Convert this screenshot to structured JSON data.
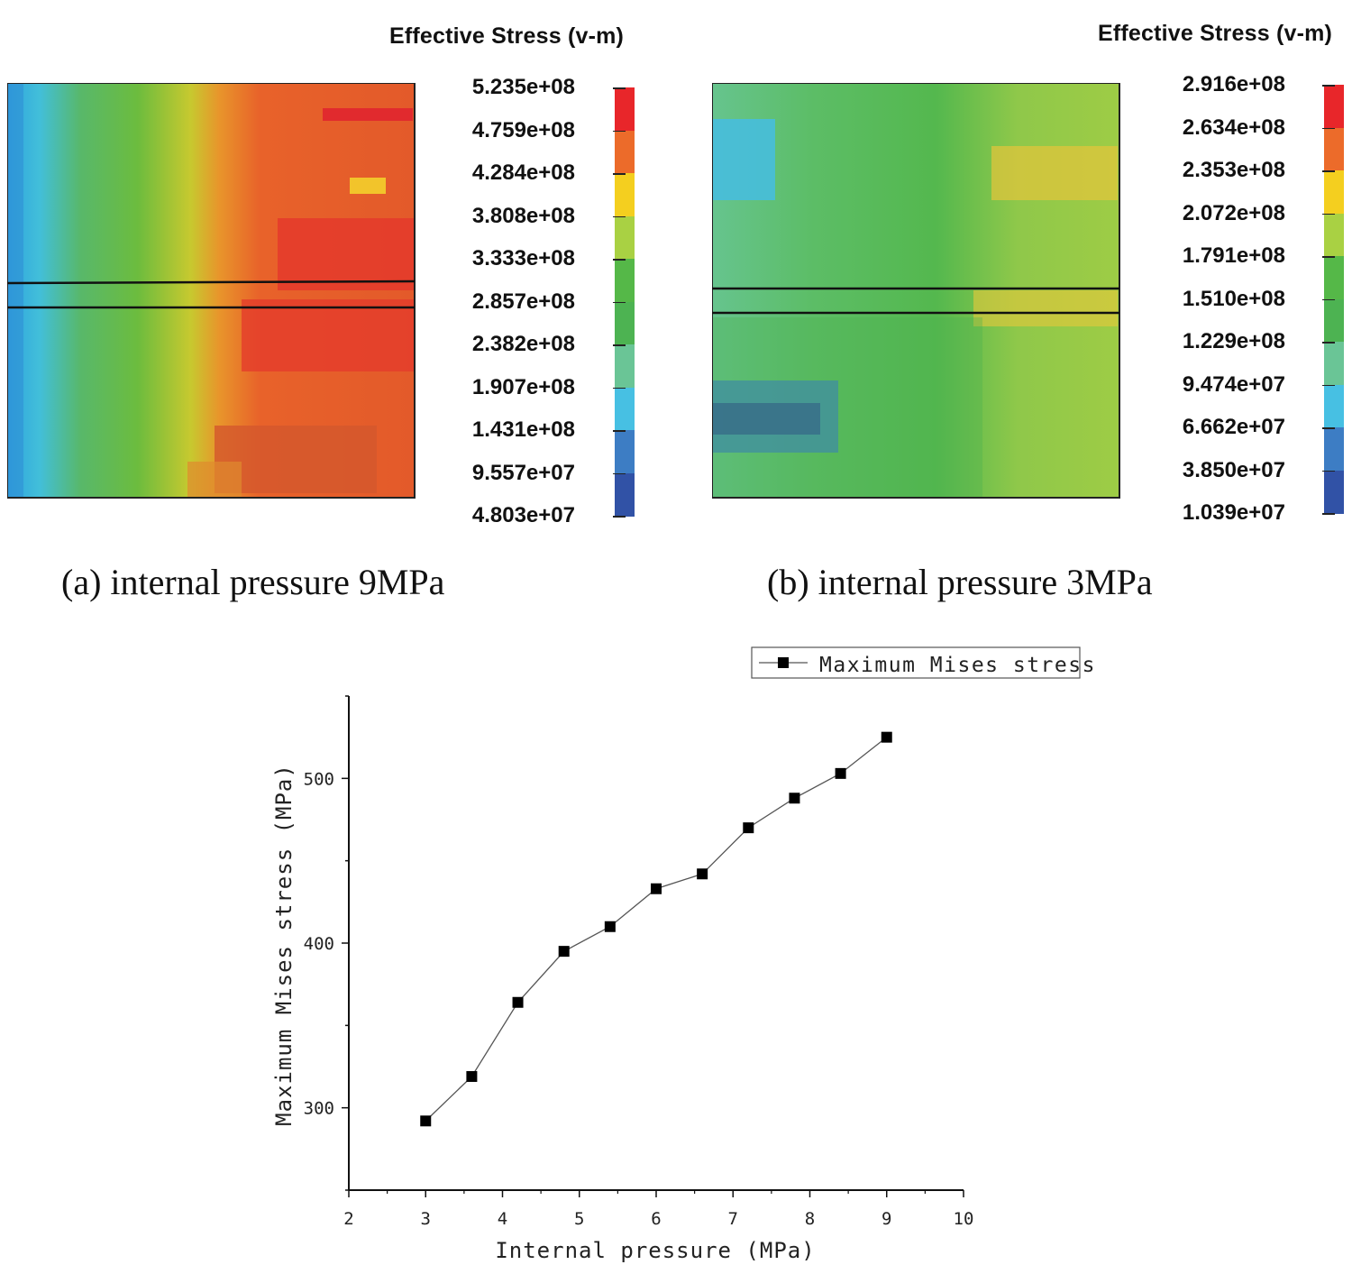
{
  "panels": [
    {
      "legend_title": "Effective Stress (v-m)",
      "caption": "(a) internal pressure 9MPa",
      "legend_values": [
        "5.235e+08",
        "4.759e+08",
        "4.284e+08",
        "3.808e+08",
        "3.333e+08",
        "2.857e+08",
        "2.382e+08",
        "1.907e+08",
        "1.431e+08",
        "9.557e+07",
        "4.803e+07"
      ]
    },
    {
      "legend_title": "Effective Stress (v-m)",
      "caption": "(b) internal pressure 3MPa",
      "legend_values": [
        "2.916e+08",
        "2.634e+08",
        "2.353e+08",
        "2.072e+08",
        "1.791e+08",
        "1.510e+08",
        "1.229e+08",
        "9.474e+07",
        "6.662e+07",
        "3.850e+07",
        "1.039e+07"
      ]
    }
  ],
  "colorbar_colors": [
    "#e8262a",
    "#ec6b2a",
    "#f4cf1f",
    "#a9d143",
    "#55b848",
    "#4db352",
    "#6ac596",
    "#47c0e3",
    "#3d7dc4",
    "#3152a6"
  ],
  "chart_data": {
    "type": "line",
    "title": "",
    "xlabel": "Internal pressure (MPa)",
    "ylabel": "Maximum Mises stress (MPa)",
    "xlim": [
      2,
      10
    ],
    "ylim": [
      250,
      550
    ],
    "xticks": [
      2,
      3,
      4,
      5,
      6,
      7,
      8,
      9,
      10
    ],
    "yticks": [
      300,
      400,
      500
    ],
    "grid": false,
    "legend_position": "top-right",
    "series": [
      {
        "name": "Maximum Mises stress",
        "marker": "square",
        "x": [
          3,
          3.6,
          4.2,
          4.8,
          5.4,
          6,
          6.6,
          7.2,
          7.8,
          8.4,
          9
        ],
        "y": [
          292,
          319,
          364,
          395,
          410,
          433,
          442,
          470,
          488,
          503,
          525
        ]
      }
    ]
  }
}
